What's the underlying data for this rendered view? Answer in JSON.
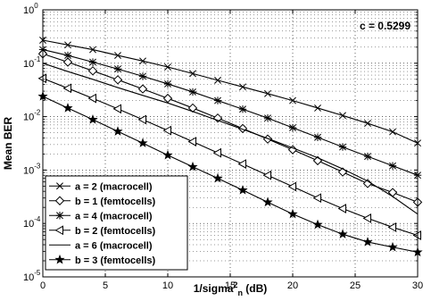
{
  "chart_data": {
    "type": "line",
    "title": "",
    "xlabel": "1/sigma",
    "xlabel_superscript": "2",
    "xlabel_subscript": "n",
    "xlabel_suffix": " (dB)",
    "ylabel": "Mean BER",
    "x_scale": "linear",
    "y_scale": "log",
    "xlim": [
      0,
      30
    ],
    "ylim": [
      1e-05,
      1
    ],
    "grid": true,
    "x_ticks": [
      0,
      5,
      10,
      15,
      20,
      25,
      30
    ],
    "x_tick_labels": [
      "0",
      "5",
      "10",
      "15",
      "20",
      "25",
      "30"
    ],
    "y_tick_exponents": [
      0,
      -1,
      -2,
      -3,
      -4,
      -5
    ],
    "y_tick_base": "10",
    "legend_position": "bottom-left",
    "annotation": "c = 0.5299",
    "x": [
      0,
      2,
      4,
      6,
      8,
      10,
      12,
      14,
      16,
      18,
      20,
      22,
      24,
      26,
      28,
      30
    ],
    "series": [
      {
        "name": "a = 2 (macrocell)",
        "marker": "x",
        "values": [
          0.27,
          0.22,
          0.18,
          0.14,
          0.11,
          0.085,
          0.064,
          0.048,
          0.036,
          0.027,
          0.02,
          0.0145,
          0.0105,
          0.0075,
          0.0052,
          0.0032
        ]
      },
      {
        "name": "b = 1 (femtocells)",
        "marker": "diamond",
        "values": [
          0.15,
          0.105,
          0.072,
          0.049,
          0.033,
          0.022,
          0.0145,
          0.0094,
          0.006,
          0.0038,
          0.0024,
          0.0015,
          0.00092,
          0.00056,
          0.00038,
          0.00025
        ]
      },
      {
        "name": "a = 4 (macrocell)",
        "marker": "asterisk",
        "values": [
          0.18,
          0.14,
          0.105,
          0.078,
          0.057,
          0.041,
          0.029,
          0.02,
          0.0138,
          0.0094,
          0.0062,
          0.0041,
          0.0027,
          0.0018,
          0.0012,
          0.0008
        ]
      },
      {
        "name": "b = 2 (femtocells)",
        "marker": "triangle-left",
        "values": [
          0.052,
          0.034,
          0.022,
          0.014,
          0.0088,
          0.0055,
          0.0034,
          0.0021,
          0.0013,
          0.0008,
          0.00049,
          0.0003,
          0.00019,
          0.000125,
          8.5e-05,
          6e-05
        ]
      },
      {
        "name": "a = 6 (macrocell)",
        "marker": "none",
        "values": [
          0.1,
          0.07,
          0.05,
          0.035,
          0.025,
          0.018,
          0.0125,
          0.0085,
          0.0058,
          0.0039,
          0.0026,
          0.0017,
          0.00105,
          0.00062,
          0.00032,
          0.00015
        ]
      },
      {
        "name": "b = 3 (femtocells)",
        "marker": "star",
        "values": [
          0.024,
          0.0145,
          0.0088,
          0.0053,
          0.0032,
          0.0019,
          0.00115,
          0.0007,
          0.00042,
          0.00025,
          0.00015,
          9.5e-05,
          6.3e-05,
          4.5e-05,
          3.6e-05,
          2.9e-05
        ]
      }
    ]
  }
}
